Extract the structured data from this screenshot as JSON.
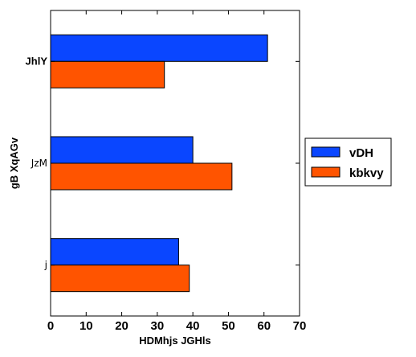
{
  "chart_data": {
    "type": "bar",
    "orientation": "horizontal",
    "categories": [
      "j",
      "JzM",
      "JhlY"
    ],
    "series": [
      {
        "name": "vDH",
        "color": "#0a46ff",
        "values": [
          36,
          40,
          61
        ]
      },
      {
        "name": "kbkvy",
        "color": "#ff5400",
        "values": [
          39,
          51,
          32
        ]
      }
    ],
    "xlabel": "HDMhjs JGHls",
    "ylabel": "gB  XqAGv",
    "xlim": [
      0,
      70
    ],
    "xticks": [
      "0",
      "10",
      "20",
      "30",
      "40",
      "50",
      "60",
      "70"
    ],
    "grid": false,
    "legend_position": "right"
  }
}
